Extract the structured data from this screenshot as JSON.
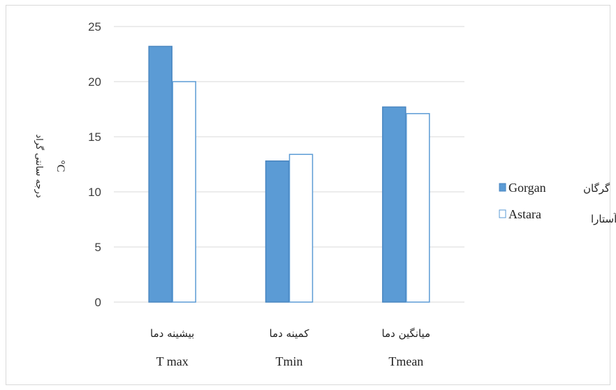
{
  "chart_data": {
    "type": "bar",
    "categories": [
      "Tmax",
      "Tmin",
      "Tmean"
    ],
    "category_labels_en": [
      "T max",
      "Tmin",
      "Tmean"
    ],
    "category_labels_fa": [
      "بیشینه دما",
      "کمینه دما",
      "میانگین دما"
    ],
    "series": [
      {
        "name": "Gorgan",
        "name_fa": "گرگان",
        "values": [
          23.2,
          12.8,
          17.7
        ],
        "fill": "#5b9bd5",
        "stroke": "#4a86c0"
      },
      {
        "name": "Astara",
        "name_fa": "آستارا",
        "values": [
          20.0,
          13.4,
          17.1
        ],
        "fill": "#ffffff",
        "stroke": "#5b9bd5"
      }
    ],
    "ylim": [
      0,
      25
    ],
    "yticks": [
      "0",
      "5",
      "10",
      "15",
      "20",
      "25"
    ],
    "ylabel": "درجه سانتی گراد",
    "ylabel_unit": "°C",
    "grid": true,
    "legend_position": "right"
  }
}
